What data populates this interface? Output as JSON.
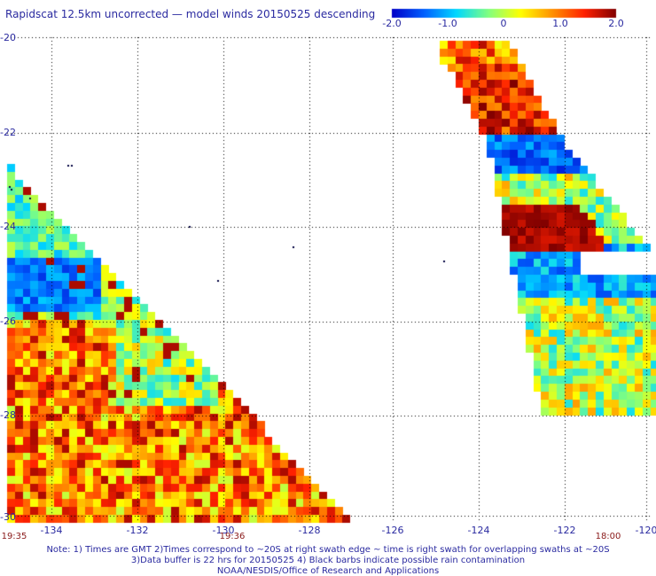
{
  "title": "Rapidscat 12.5km uncorrected — model winds 20150525 descending",
  "colorbar": {
    "ticks": [
      "-2.0",
      "-1.0",
      "0",
      "1.0",
      "2.0"
    ],
    "colors": [
      "#0000c8",
      "#0060ff",
      "#00d8ff",
      "#80ff80",
      "#ffff00",
      "#ff9000",
      "#ff2000",
      "#800000"
    ]
  },
  "axes": {
    "lat_labels": [
      "-20",
      "-22",
      "-24",
      "-26",
      "-28",
      "-30"
    ],
    "lon_labels": [
      "-134",
      "-132",
      "-130",
      "-128",
      "-126",
      "-124",
      "-122",
      "-120"
    ],
    "time_labels": [
      "19:35",
      "19:36",
      "18:00"
    ]
  },
  "notes": [
    "Note: 1) Times are GMT 2)Times correspond to ~20S at right swath edge ~ time is right swath for overlapping swaths at ~20S",
    "3)Data buffer is 22 hrs for 20150525 4) Black barbs indicate possible rain contamination",
    "NOAA/NESDIS/Office of Research and Applications"
  ]
}
